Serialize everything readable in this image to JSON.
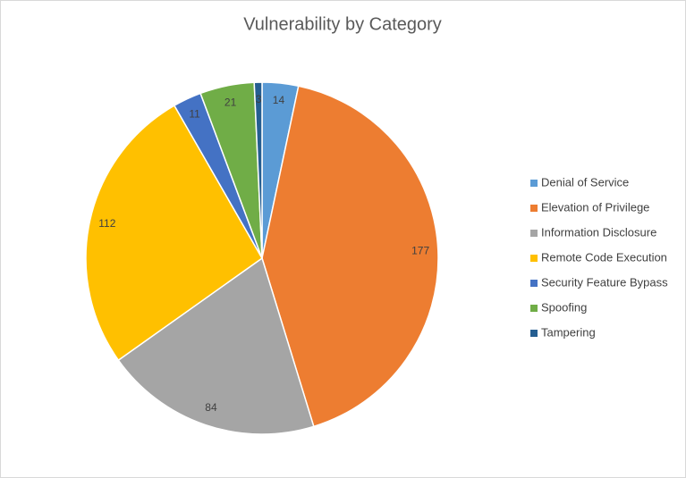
{
  "chart_data": {
    "type": "pie",
    "title": "Vulnerability by Category",
    "categories": [
      "Denial of Service",
      "Elevation of Privilege",
      "Information Disclosure",
      "Remote Code Execution",
      "Security Feature Bypass",
      "Spoofing",
      "Tampering"
    ],
    "values": [
      14,
      177,
      84,
      112,
      11,
      21,
      3
    ],
    "colors": [
      "#5b9bd5",
      "#ed7d31",
      "#a5a5a5",
      "#ffc000",
      "#4472c4",
      "#70ad47",
      "#255e91"
    ],
    "legend": "right"
  }
}
